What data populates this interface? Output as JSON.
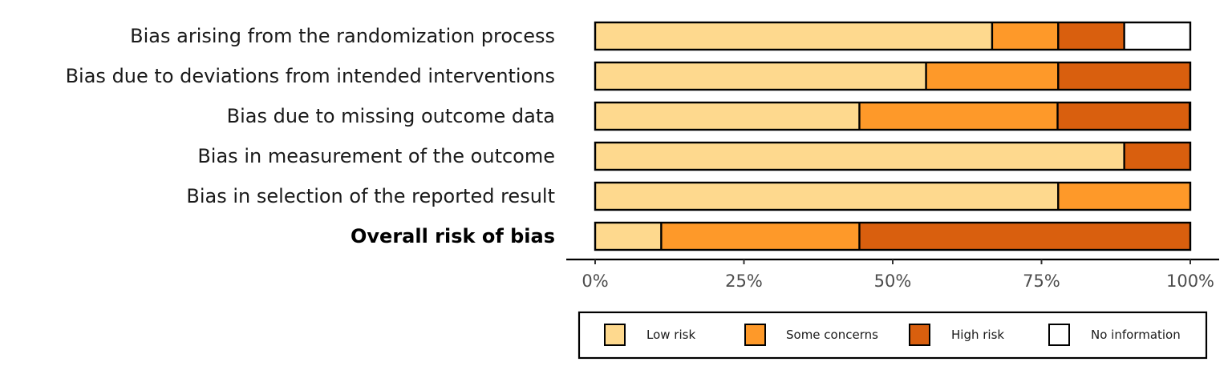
{
  "chart_data": {
    "type": "bar",
    "orientation": "horizontal",
    "stacked": true,
    "categories": [
      "Bias arising from the randomization process",
      "Bias due to deviations from intended interventions",
      "Bias due to missing outcome data",
      "Bias in measurement of the outcome",
      "Bias in selection of the reported result",
      "Overall risk of bias"
    ],
    "bold_categories": [
      "Overall risk of bias"
    ],
    "series": [
      {
        "name": "Low risk",
        "color": "#FED98E",
        "values": [
          66.7,
          55.6,
          44.4,
          88.9,
          77.8,
          11.1
        ]
      },
      {
        "name": "Some concerns",
        "color": "#FE9929",
        "values": [
          11.1,
          22.2,
          33.3,
          0,
          22.2,
          33.3
        ]
      },
      {
        "name": "High risk",
        "color": "#D95F0E",
        "values": [
          11.1,
          22.2,
          22.2,
          11.1,
          0,
          55.6
        ]
      },
      {
        "name": "No information",
        "color": "#FFFFFF",
        "values": [
          11.1,
          0,
          0,
          0,
          0,
          0
        ]
      }
    ],
    "xlim": [
      0,
      100
    ],
    "x_ticks": [
      0,
      25,
      50,
      75,
      100
    ],
    "x_tick_labels": [
      "0%",
      "25%",
      "50%",
      "75%",
      "100%"
    ],
    "title": "",
    "xlabel": "",
    "ylabel": "",
    "grid": false,
    "legend_position": "bottom"
  }
}
